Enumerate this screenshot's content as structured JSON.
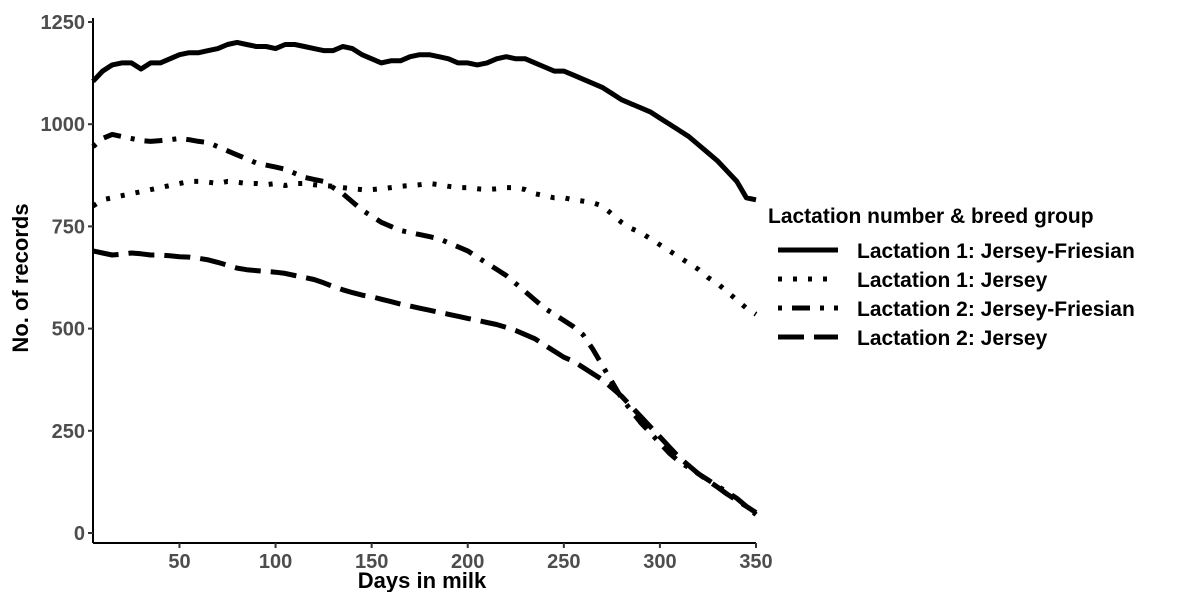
{
  "chart_data": {
    "type": "line",
    "title": "",
    "xlabel": "Days in milk",
    "ylabel": "No. of records",
    "xlim": [
      5,
      350
    ],
    "ylim": [
      0,
      1250
    ],
    "x_ticks": [
      50,
      100,
      150,
      200,
      250,
      300,
      350
    ],
    "y_ticks": [
      0,
      250,
      500,
      750,
      1000,
      1250
    ],
    "grid": false,
    "legend_position": "right",
    "legend_title": "Lactation number & breed group",
    "series": [
      {
        "name": "Lactation 1: Jersey-Friesian",
        "line_style": "solid",
        "color": "#000000",
        "points": [
          [
            5,
            1105
          ],
          [
            10,
            1130
          ],
          [
            15,
            1145
          ],
          [
            20,
            1150
          ],
          [
            25,
            1150
          ],
          [
            30,
            1135
          ],
          [
            35,
            1150
          ],
          [
            40,
            1150
          ],
          [
            45,
            1160
          ],
          [
            50,
            1170
          ],
          [
            55,
            1175
          ],
          [
            60,
            1175
          ],
          [
            65,
            1180
          ],
          [
            70,
            1185
          ],
          [
            75,
            1195
          ],
          [
            80,
            1200
          ],
          [
            85,
            1195
          ],
          [
            90,
            1190
          ],
          [
            95,
            1190
          ],
          [
            100,
            1185
          ],
          [
            105,
            1195
          ],
          [
            110,
            1195
          ],
          [
            115,
            1190
          ],
          [
            120,
            1185
          ],
          [
            125,
            1180
          ],
          [
            130,
            1180
          ],
          [
            135,
            1190
          ],
          [
            140,
            1185
          ],
          [
            145,
            1170
          ],
          [
            150,
            1160
          ],
          [
            155,
            1150
          ],
          [
            160,
            1155
          ],
          [
            165,
            1155
          ],
          [
            170,
            1165
          ],
          [
            175,
            1170
          ],
          [
            180,
            1170
          ],
          [
            185,
            1165
          ],
          [
            190,
            1160
          ],
          [
            195,
            1150
          ],
          [
            200,
            1150
          ],
          [
            205,
            1145
          ],
          [
            210,
            1150
          ],
          [
            215,
            1160
          ],
          [
            220,
            1165
          ],
          [
            225,
            1160
          ],
          [
            230,
            1160
          ],
          [
            235,
            1150
          ],
          [
            240,
            1140
          ],
          [
            245,
            1130
          ],
          [
            250,
            1130
          ],
          [
            255,
            1120
          ],
          [
            260,
            1110
          ],
          [
            265,
            1100
          ],
          [
            270,
            1090
          ],
          [
            275,
            1075
          ],
          [
            280,
            1060
          ],
          [
            285,
            1050
          ],
          [
            290,
            1040
          ],
          [
            295,
            1030
          ],
          [
            300,
            1015
          ],
          [
            305,
            1000
          ],
          [
            310,
            985
          ],
          [
            315,
            970
          ],
          [
            320,
            950
          ],
          [
            325,
            930
          ],
          [
            330,
            910
          ],
          [
            335,
            885
          ],
          [
            340,
            860
          ],
          [
            345,
            820
          ],
          [
            350,
            815
          ]
        ]
      },
      {
        "name": "Lactation 1: Jersey",
        "line_style": "dotted",
        "color": "#000000",
        "points": [
          [
            5,
            800
          ],
          [
            10,
            815
          ],
          [
            15,
            820
          ],
          [
            20,
            825
          ],
          [
            25,
            830
          ],
          [
            30,
            835
          ],
          [
            35,
            840
          ],
          [
            40,
            845
          ],
          [
            45,
            850
          ],
          [
            50,
            855
          ],
          [
            55,
            860
          ],
          [
            60,
            860
          ],
          [
            65,
            858
          ],
          [
            70,
            855
          ],
          [
            75,
            860
          ],
          [
            80,
            858
          ],
          [
            85,
            855
          ],
          [
            90,
            855
          ],
          [
            95,
            852
          ],
          [
            100,
            855
          ],
          [
            105,
            850
          ],
          [
            110,
            855
          ],
          [
            115,
            855
          ],
          [
            120,
            852
          ],
          [
            125,
            850
          ],
          [
            130,
            848
          ],
          [
            135,
            845
          ],
          [
            140,
            842
          ],
          [
            145,
            840
          ],
          [
            150,
            840
          ],
          [
            155,
            842
          ],
          [
            160,
            845
          ],
          [
            165,
            848
          ],
          [
            170,
            850
          ],
          [
            175,
            852
          ],
          [
            180,
            855
          ],
          [
            185,
            852
          ],
          [
            190,
            848
          ],
          [
            195,
            845
          ],
          [
            200,
            845
          ],
          [
            205,
            842
          ],
          [
            210,
            840
          ],
          [
            215,
            842
          ],
          [
            220,
            845
          ],
          [
            225,
            845
          ],
          [
            230,
            840
          ],
          [
            235,
            830
          ],
          [
            240,
            825
          ],
          [
            245,
            820
          ],
          [
            250,
            820
          ],
          [
            255,
            815
          ],
          [
            260,
            812
          ],
          [
            265,
            808
          ],
          [
            270,
            800
          ],
          [
            275,
            780
          ],
          [
            280,
            760
          ],
          [
            285,
            745
          ],
          [
            290,
            735
          ],
          [
            295,
            720
          ],
          [
            300,
            705
          ],
          [
            305,
            690
          ],
          [
            310,
            675
          ],
          [
            315,
            660
          ],
          [
            320,
            645
          ],
          [
            325,
            625
          ],
          [
            330,
            610
          ],
          [
            335,
            590
          ],
          [
            340,
            570
          ],
          [
            345,
            550
          ],
          [
            350,
            535
          ]
        ]
      },
      {
        "name": "Lactation 2: Jersey-Friesian",
        "line_style": "dotdash",
        "color": "#000000",
        "points": [
          [
            5,
            945
          ],
          [
            10,
            965
          ],
          [
            15,
            975
          ],
          [
            20,
            970
          ],
          [
            25,
            965
          ],
          [
            30,
            960
          ],
          [
            35,
            958
          ],
          [
            40,
            960
          ],
          [
            45,
            962
          ],
          [
            50,
            965
          ],
          [
            55,
            962
          ],
          [
            60,
            958
          ],
          [
            65,
            955
          ],
          [
            70,
            945
          ],
          [
            75,
            935
          ],
          [
            80,
            925
          ],
          [
            85,
            915
          ],
          [
            90,
            905
          ],
          [
            95,
            900
          ],
          [
            100,
            895
          ],
          [
            105,
            890
          ],
          [
            110,
            880
          ],
          [
            115,
            870
          ],
          [
            120,
            865
          ],
          [
            125,
            860
          ],
          [
            130,
            845
          ],
          [
            135,
            830
          ],
          [
            140,
            810
          ],
          [
            145,
            790
          ],
          [
            150,
            775
          ],
          [
            155,
            760
          ],
          [
            160,
            750
          ],
          [
            165,
            740
          ],
          [
            170,
            735
          ],
          [
            175,
            730
          ],
          [
            180,
            725
          ],
          [
            185,
            720
          ],
          [
            190,
            710
          ],
          [
            195,
            700
          ],
          [
            200,
            690
          ],
          [
            205,
            675
          ],
          [
            210,
            660
          ],
          [
            215,
            645
          ],
          [
            220,
            630
          ],
          [
            225,
            610
          ],
          [
            230,
            590
          ],
          [
            235,
            570
          ],
          [
            240,
            550
          ],
          [
            245,
            535
          ],
          [
            250,
            520
          ],
          [
            255,
            505
          ],
          [
            260,
            485
          ],
          [
            265,
            450
          ],
          [
            270,
            410
          ],
          [
            275,
            370
          ],
          [
            280,
            330
          ],
          [
            285,
            300
          ],
          [
            290,
            270
          ],
          [
            295,
            245
          ],
          [
            300,
            220
          ],
          [
            305,
            195
          ],
          [
            310,
            175
          ],
          [
            315,
            160
          ],
          [
            320,
            145
          ],
          [
            325,
            130
          ],
          [
            330,
            115
          ],
          [
            335,
            100
          ],
          [
            340,
            85
          ],
          [
            345,
            65
          ],
          [
            350,
            45
          ]
        ]
      },
      {
        "name": "Lactation 2: Jersey",
        "line_style": "longdash",
        "color": "#000000",
        "points": [
          [
            5,
            690
          ],
          [
            10,
            685
          ],
          [
            15,
            680
          ],
          [
            20,
            682
          ],
          [
            25,
            685
          ],
          [
            30,
            683
          ],
          [
            35,
            680
          ],
          [
            40,
            680
          ],
          [
            45,
            678
          ],
          [
            50,
            676
          ],
          [
            55,
            675
          ],
          [
            60,
            672
          ],
          [
            65,
            668
          ],
          [
            70,
            662
          ],
          [
            75,
            655
          ],
          [
            80,
            648
          ],
          [
            85,
            644
          ],
          [
            90,
            642
          ],
          [
            95,
            640
          ],
          [
            100,
            638
          ],
          [
            105,
            635
          ],
          [
            110,
            630
          ],
          [
            115,
            625
          ],
          [
            120,
            620
          ],
          [
            125,
            612
          ],
          [
            130,
            603
          ],
          [
            135,
            595
          ],
          [
            140,
            588
          ],
          [
            145,
            582
          ],
          [
            150,
            578
          ],
          [
            155,
            572
          ],
          [
            160,
            566
          ],
          [
            165,
            560
          ],
          [
            170,
            555
          ],
          [
            175,
            550
          ],
          [
            180,
            545
          ],
          [
            185,
            540
          ],
          [
            190,
            535
          ],
          [
            195,
            530
          ],
          [
            200,
            525
          ],
          [
            205,
            520
          ],
          [
            210,
            515
          ],
          [
            215,
            510
          ],
          [
            220,
            503
          ],
          [
            225,
            495
          ],
          [
            230,
            485
          ],
          [
            235,
            475
          ],
          [
            240,
            460
          ],
          [
            245,
            445
          ],
          [
            250,
            430
          ],
          [
            255,
            420
          ],
          [
            260,
            405
          ],
          [
            265,
            390
          ],
          [
            270,
            375
          ],
          [
            275,
            355
          ],
          [
            280,
            335
          ],
          [
            285,
            310
          ],
          [
            290,
            285
          ],
          [
            295,
            260
          ],
          [
            300,
            235
          ],
          [
            305,
            210
          ],
          [
            310,
            185
          ],
          [
            315,
            165
          ],
          [
            320,
            145
          ],
          [
            325,
            128
          ],
          [
            330,
            112
          ],
          [
            335,
            95
          ],
          [
            340,
            80
          ],
          [
            345,
            65
          ],
          [
            350,
            50
          ]
        ]
      }
    ]
  }
}
